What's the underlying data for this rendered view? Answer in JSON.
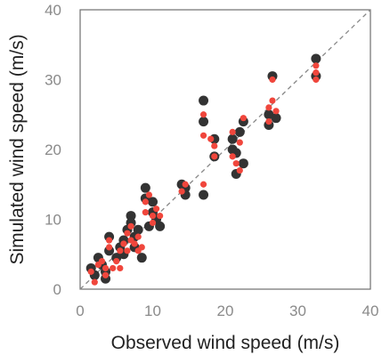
{
  "chart_data": {
    "type": "scatter",
    "xlabel": "Observed wind speed (m/s)",
    "ylabel": "Simulated wind speed (m/s)",
    "xlim": [
      0,
      40
    ],
    "ylim": [
      0,
      40
    ],
    "xticks": [
      "0",
      "10",
      "20",
      "30",
      "40"
    ],
    "yticks": [
      "0",
      "10",
      "20",
      "30",
      "40"
    ],
    "grid": false,
    "legend": "none",
    "reference_line": {
      "style": "dashed",
      "color": "#888888",
      "from": [
        0,
        0
      ],
      "to": [
        40,
        40
      ]
    },
    "series": [
      {
        "color": "#333333",
        "points": [
          [
            1.5,
            3.0
          ],
          [
            2.0,
            2.0
          ],
          [
            2.5,
            4.5
          ],
          [
            3.0,
            3.5
          ],
          [
            3.5,
            2.5
          ],
          [
            3.5,
            1.5
          ],
          [
            4.0,
            7.5
          ],
          [
            4.0,
            5.5
          ],
          [
            5.0,
            4.5
          ],
          [
            5.5,
            6.0
          ],
          [
            6.0,
            5.0
          ],
          [
            6.0,
            7.0
          ],
          [
            6.5,
            8.5
          ],
          [
            7.0,
            10.5
          ],
          [
            7.0,
            9.5
          ],
          [
            7.5,
            7.5
          ],
          [
            7.5,
            6.0
          ],
          [
            8.0,
            8.5
          ],
          [
            8.5,
            4.5
          ],
          [
            9.0,
            14.5
          ],
          [
            9.0,
            13.0
          ],
          [
            9.5,
            9.0
          ],
          [
            10.0,
            12.5
          ],
          [
            10.0,
            11.0
          ],
          [
            10.5,
            10.0
          ],
          [
            11.0,
            9.0
          ],
          [
            14.0,
            15.0
          ],
          [
            14.5,
            14.5
          ],
          [
            14.5,
            13.5
          ],
          [
            17.0,
            27.0
          ],
          [
            17.0,
            24.0
          ],
          [
            17.0,
            13.5
          ],
          [
            18.5,
            21.5
          ],
          [
            18.5,
            19.0
          ],
          [
            21.0,
            21.5
          ],
          [
            21.0,
            20.0
          ],
          [
            21.5,
            19.5
          ],
          [
            21.5,
            16.5
          ],
          [
            22.0,
            22.5
          ],
          [
            22.5,
            24.0
          ],
          [
            22.5,
            18.0
          ],
          [
            26.0,
            25.0
          ],
          [
            26.0,
            23.5
          ],
          [
            26.5,
            30.5
          ],
          [
            27.0,
            24.5
          ],
          [
            32.5,
            33.0
          ],
          [
            32.5,
            30.5
          ]
        ]
      },
      {
        "color": "#f0463c",
        "points": [
          [
            1.5,
            2.5
          ],
          [
            2.0,
            1.0
          ],
          [
            2.5,
            3.5
          ],
          [
            3.0,
            4.0
          ],
          [
            3.5,
            3.0
          ],
          [
            3.5,
            2.0
          ],
          [
            4.0,
            7.0
          ],
          [
            4.0,
            6.0
          ],
          [
            4.5,
            3.0
          ],
          [
            5.0,
            4.0
          ],
          [
            5.5,
            5.5
          ],
          [
            5.5,
            3.0
          ],
          [
            6.0,
            6.5
          ],
          [
            6.5,
            8.0
          ],
          [
            6.5,
            5.5
          ],
          [
            7.0,
            9.0
          ],
          [
            7.0,
            7.0
          ],
          [
            7.5,
            6.5
          ],
          [
            8.0,
            7.5
          ],
          [
            8.0,
            5.5
          ],
          [
            8.5,
            6.0
          ],
          [
            9.0,
            12.5
          ],
          [
            9.0,
            11.0
          ],
          [
            9.5,
            13.5
          ],
          [
            10.0,
            10.5
          ],
          [
            10.0,
            9.5
          ],
          [
            10.5,
            11.5
          ],
          [
            11.0,
            10.5
          ],
          [
            14.0,
            14.0
          ],
          [
            14.5,
            15.0
          ],
          [
            17.0,
            25.0
          ],
          [
            17.0,
            22.0
          ],
          [
            17.0,
            15.0
          ],
          [
            18.0,
            21.5
          ],
          [
            18.5,
            20.5
          ],
          [
            18.5,
            19.0
          ],
          [
            21.0,
            22.5
          ],
          [
            21.0,
            19.0
          ],
          [
            21.5,
            18.0
          ],
          [
            22.0,
            21.0
          ],
          [
            22.0,
            17.0
          ],
          [
            22.5,
            24.5
          ],
          [
            26.0,
            26.0
          ],
          [
            26.0,
            24.0
          ],
          [
            26.5,
            27.0
          ],
          [
            26.5,
            30.0
          ],
          [
            27.0,
            25.5
          ],
          [
            32.5,
            32.0
          ],
          [
            32.5,
            31.0
          ],
          [
            32.5,
            30.0
          ]
        ]
      }
    ]
  }
}
